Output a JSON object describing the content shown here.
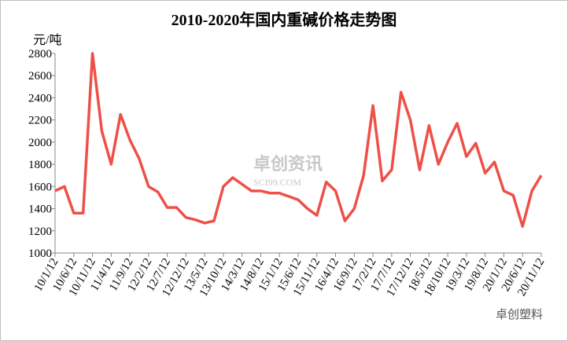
{
  "chart_data": {
    "type": "line",
    "title": "2010-2020年国内重碱价格走势图",
    "y_label": "元/吨",
    "watermarks": [
      "卓创资讯",
      "SCI99.COM",
      "卓创塑料"
    ],
    "categories": [
      "10/1/12",
      null,
      "10/6/12",
      null,
      "10/11/12",
      null,
      "11/4/12",
      null,
      "11/9/12",
      null,
      "12/2/12",
      null,
      "12/7/12",
      null,
      "12/12/12",
      null,
      "13/5/12",
      null,
      "13/10/12",
      null,
      "14/3/12",
      null,
      "14/8/12",
      null,
      "15/1/12",
      null,
      "15/6/12",
      null,
      "15/11/12",
      null,
      "16/4/12",
      null,
      "16/9/12",
      null,
      "17/2/12",
      null,
      "17/7/12",
      null,
      "17/12/12",
      null,
      "18/5/12",
      null,
      "18/10/12",
      null,
      "19/3/12",
      null,
      "19/8/12",
      null,
      "20/1/12",
      null,
      "20/6/12",
      null,
      "20/11/12"
    ],
    "series": [
      {
        "name": "重碱",
        "color": "#ee5048",
        "values": [
          1560,
          1600,
          1360,
          1360,
          2800,
          2100,
          1800,
          2250,
          2020,
          1850,
          1600,
          1550,
          1410,
          1410,
          1320,
          1300,
          1270,
          1290,
          1600,
          1680,
          1620,
          1560,
          1560,
          1540,
          1540,
          1510,
          1480,
          1400,
          1340,
          1640,
          1560,
          1290,
          1400,
          1700,
          2330,
          1650,
          1750,
          2450,
          2200,
          1750,
          2150,
          1800,
          2000,
          2170,
          1870,
          1990,
          1720,
          1820,
          1560,
          1520,
          1240,
          1560,
          1700
        ]
      }
    ],
    "ylim": [
      1000,
      2800
    ],
    "yticks": [
      1000,
      1200,
      1400,
      1600,
      1800,
      2000,
      2200,
      2400,
      2600,
      2800
    ],
    "grid": false
  }
}
